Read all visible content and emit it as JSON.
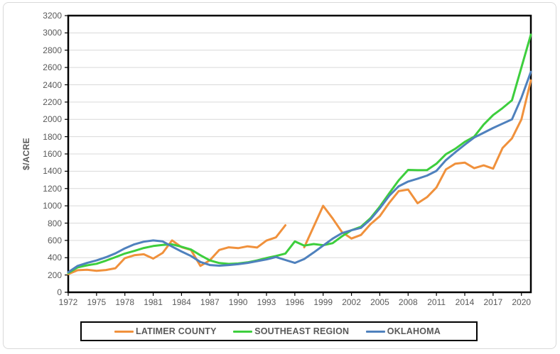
{
  "chart_data": {
    "type": "line",
    "title": "",
    "xlabel": "",
    "ylabel": "$/ACRE",
    "ylim": [
      0,
      3200
    ],
    "ytick_step": 200,
    "y_ticks": [
      0,
      200,
      400,
      600,
      800,
      1000,
      1200,
      1400,
      1600,
      1800,
      2000,
      2200,
      2400,
      2600,
      2800,
      3000,
      3200
    ],
    "x_ticks": [
      1972,
      1975,
      1978,
      1981,
      1984,
      1987,
      1990,
      1993,
      1996,
      1999,
      2002,
      2005,
      2008,
      2011,
      2014,
      2017,
      2020
    ],
    "x": [
      1972,
      1973,
      1974,
      1975,
      1976,
      1977,
      1978,
      1979,
      1980,
      1981,
      1982,
      1983,
      1984,
      1985,
      1986,
      1987,
      1988,
      1989,
      1990,
      1991,
      1992,
      1993,
      1994,
      1995,
      1996,
      1997,
      1998,
      1999,
      2000,
      2001,
      2002,
      2003,
      2004,
      2005,
      2006,
      2007,
      2008,
      2009,
      2010,
      2011,
      2012,
      2013,
      2014,
      2015,
      2016,
      2017,
      2018,
      2019,
      2020,
      2021
    ],
    "grid": "horizontal",
    "legend_position": "bottom",
    "colors": {
      "grid": "#d9d9d9",
      "axis": "#000000",
      "text": "#595959",
      "background": "#ffffff"
    },
    "series": [
      {
        "name": "LATIMER COUNTY",
        "color": "#F0913C",
        "values": [
          210,
          255,
          260,
          248,
          258,
          278,
          395,
          428,
          440,
          390,
          455,
          600,
          522,
          490,
          305,
          370,
          490,
          520,
          510,
          532,
          518,
          598,
          635,
          775,
          null,
          520,
          760,
          1000,
          855,
          695,
          622,
          663,
          785,
          880,
          1035,
          1170,
          1188,
          1030,
          1100,
          1212,
          1420,
          1488,
          1500,
          1435,
          1468,
          1430,
          1668,
          1780,
          2000,
          2450
        ]
      },
      {
        "name": "SOUTHEAST REGION",
        "color": "#3DCE3D",
        "values": [
          222,
          288,
          312,
          330,
          366,
          406,
          448,
          478,
          512,
          535,
          548,
          555,
          527,
          495,
          428,
          368,
          338,
          328,
          333,
          346,
          368,
          396,
          420,
          448,
          588,
          540,
          558,
          545,
          568,
          648,
          718,
          758,
          855,
          990,
          1145,
          1295,
          1415,
          1412,
          1413,
          1487,
          1597,
          1660,
          1740,
          1800,
          1940,
          2050,
          2130,
          2220,
          2600,
          2980
        ]
      },
      {
        "name": "OKLAHOMA",
        "color": "#4F81BD",
        "values": [
          232,
          305,
          340,
          368,
          405,
          450,
          508,
          555,
          585,
          600,
          588,
          528,
          472,
          420,
          350,
          315,
          308,
          315,
          325,
          340,
          360,
          380,
          408,
          373,
          340,
          385,
          460,
          540,
          620,
          684,
          717,
          745,
          841,
          971,
          1116,
          1226,
          1281,
          1314,
          1350,
          1404,
          1528,
          1620,
          1707,
          1790,
          1845,
          1900,
          1950,
          2000,
          2250,
          2550
        ]
      }
    ]
  }
}
